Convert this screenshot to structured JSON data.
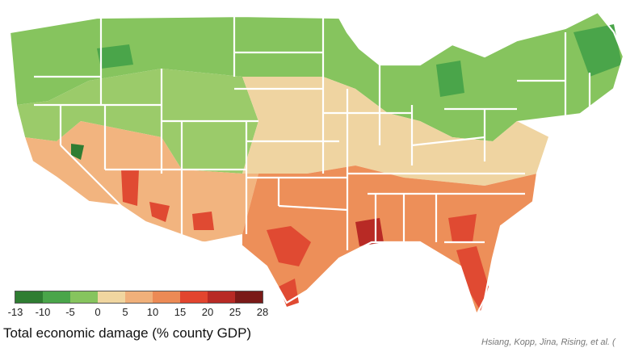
{
  "legend": {
    "title": "Total economic damage (% county GDP)",
    "ticks": [
      "-13",
      "-10",
      "-5",
      "0",
      "5",
      "10",
      "15",
      "20",
      "25",
      "28"
    ],
    "colors": [
      "#2f7d32",
      "#4aa54a",
      "#86c45e",
      "#f0d6a0",
      "#f0b07a",
      "#ec8a55",
      "#e2452e",
      "#b82a25",
      "#7a1a18"
    ]
  },
  "credit": "Hsiang, Kopp, Jina, Rising, et al. (",
  "map_colors": {
    "green_dark": "#3f9a45",
    "green": "#7cbf5a",
    "green_light": "#a7d27a",
    "tan": "#efd4a1",
    "orange_light": "#f2b47f",
    "orange": "#ed8f59",
    "red": "#e04a32",
    "red_dark": "#b82a25",
    "border": "#ffffff"
  }
}
